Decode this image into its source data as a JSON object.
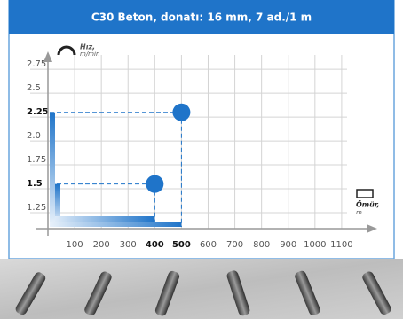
{
  "chart_data": {
    "type": "scatter",
    "title": "C30 Beton, donatı: 16 mm, 7 ad./1 m",
    "y_label": "Hız,",
    "y_unit": "m/min",
    "x_label": "Ömür,",
    "x_unit": "m",
    "series": [
      {
        "color": "#1f74c9",
        "x": [
          400,
          500
        ],
        "values": [
          1.55,
          2.3
        ]
      }
    ],
    "xlim": [
      0,
      1220
    ],
    "ylim": [
      1.083,
      2.9
    ],
    "xticks": [
      100,
      200,
      300,
      400,
      500,
      600,
      700,
      800,
      900,
      1000,
      1100
    ],
    "yticks": [
      2.75,
      2.5,
      2.25,
      {
        "value": 2,
        "label": "2.0"
      },
      1.75,
      1.5,
      1.25
    ],
    "grid": true
  }
}
